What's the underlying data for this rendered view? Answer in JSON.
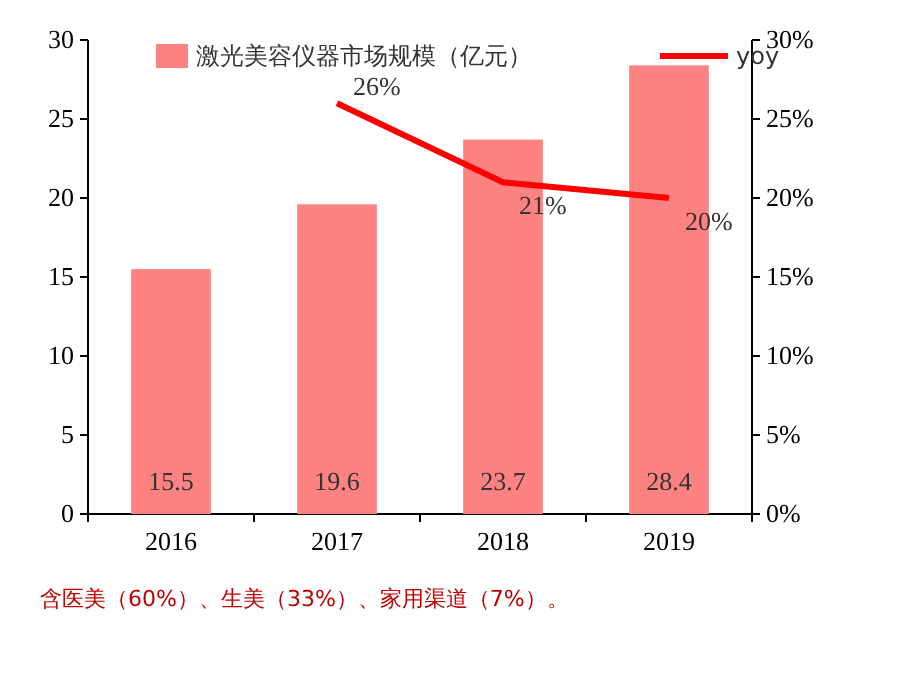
{
  "chart_data": {
    "type": "bar",
    "categories": [
      "2016",
      "2017",
      "2018",
      "2019"
    ],
    "series": [
      {
        "name": "激光美容仪器市场规模（亿元）",
        "color": "#ff8282",
        "values": [
          15.5,
          19.6,
          23.7,
          28.4
        ]
      },
      {
        "name": "yoy",
        "type": "line",
        "axis": "y2",
        "color": "#ff0000",
        "values": [
          null,
          0.26,
          0.21,
          0.2
        ],
        "value_labels": [
          null,
          "26%",
          "21%",
          "20%"
        ]
      }
    ],
    "data_labels": true,
    "ylim": [
      0,
      30
    ],
    "yticks": [
      0,
      5,
      10,
      15,
      20,
      25,
      30
    ],
    "y2lim": [
      0,
      0.3
    ],
    "y2ticks": [
      {
        "value": 0,
        "label": "0%"
      },
      {
        "value": 0.05,
        "label": "5%"
      },
      {
        "value": 0.1,
        "label": "10%"
      },
      {
        "value": 0.15,
        "label": "15%"
      },
      {
        "value": 0.2,
        "label": "20%"
      },
      {
        "value": 0.25,
        "label": "25%"
      },
      {
        "value": 0.3,
        "label": "30%"
      }
    ],
    "legend": "top",
    "grid": false,
    "marker": "none",
    "annotations": [
      "含医美（60%）、生美（33%）、家用渠道（7%）。"
    ]
  }
}
